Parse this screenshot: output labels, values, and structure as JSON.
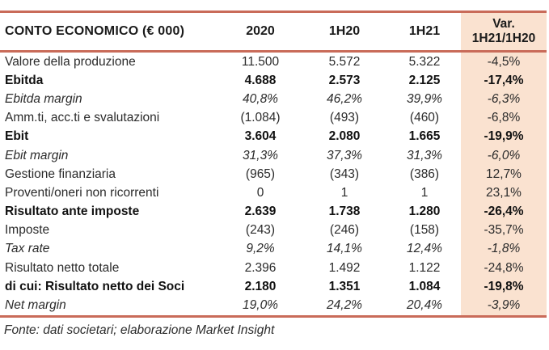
{
  "colors": {
    "accent_border": "#C96B59",
    "var_column_bg": "#FAE2D0"
  },
  "table": {
    "header": {
      "label": "CONTO ECONOMICO (€ 000)",
      "col_2020": "2020",
      "col_1h20": "1H20",
      "col_1h21": "1H21",
      "col_var_line1": "Var.",
      "col_var_line2": "1H21/1H20"
    },
    "rows": [
      {
        "label": "Valore della produzione",
        "v2020": "11.500",
        "v1h20": "5.572",
        "v1h21": "5.322",
        "var": "-4,5%",
        "style": "normal"
      },
      {
        "label": "Ebitda",
        "v2020": "4.688",
        "v1h20": "2.573",
        "v1h21": "2.125",
        "var": "-17,4%",
        "style": "bold"
      },
      {
        "label": "Ebitda margin",
        "v2020": "40,8%",
        "v1h20": "46,2%",
        "v1h21": "39,9%",
        "var": "-6,3%",
        "style": "italic"
      },
      {
        "label": "Amm.ti, acc.ti e svalutazioni",
        "v2020": "(1.084)",
        "v1h20": "(493)",
        "v1h21": "(460)",
        "var": "-6,8%",
        "style": "normal"
      },
      {
        "label": "Ebit",
        "v2020": "3.604",
        "v1h20": "2.080",
        "v1h21": "1.665",
        "var": "-19,9%",
        "style": "bold"
      },
      {
        "label": "Ebit margin",
        "v2020": "31,3%",
        "v1h20": "37,3%",
        "v1h21": "31,3%",
        "var": "-6,0%",
        "style": "italic"
      },
      {
        "label": "Gestione finanziaria",
        "v2020": "(965)",
        "v1h20": "(343)",
        "v1h21": "(386)",
        "var": "12,7%",
        "style": "normal"
      },
      {
        "label": "Proventi/oneri non ricorrenti",
        "v2020": "0",
        "v1h20": "1",
        "v1h21": "1",
        "var": "23,1%",
        "style": "normal"
      },
      {
        "label": "Risultato ante imposte",
        "v2020": "2.639",
        "v1h20": "1.738",
        "v1h21": "1.280",
        "var": "-26,4%",
        "style": "bold"
      },
      {
        "label": "Imposte",
        "v2020": "(243)",
        "v1h20": "(246)",
        "v1h21": "(158)",
        "var": "-35,7%",
        "style": "normal"
      },
      {
        "label": "Tax rate",
        "v2020": "9,2%",
        "v1h20": "14,1%",
        "v1h21": "12,4%",
        "var": "-1,8%",
        "style": "italic"
      },
      {
        "label": "Risultato netto totale",
        "v2020": "2.396",
        "v1h20": "1.492",
        "v1h21": "1.122",
        "var": "-24,8%",
        "style": "normal"
      },
      {
        "label": "di cui: Risultato netto dei Soci",
        "v2020": "2.180",
        "v1h20": "1.351",
        "v1h21": "1.084",
        "var": "-19,8%",
        "style": "bold"
      },
      {
        "label": "Net margin",
        "v2020": "19,0%",
        "v1h20": "24,2%",
        "v1h21": "20,4%",
        "var": "-3,9%",
        "style": "italic"
      }
    ],
    "footer": "Fonte: dati societari; elaborazione Market Insight"
  }
}
